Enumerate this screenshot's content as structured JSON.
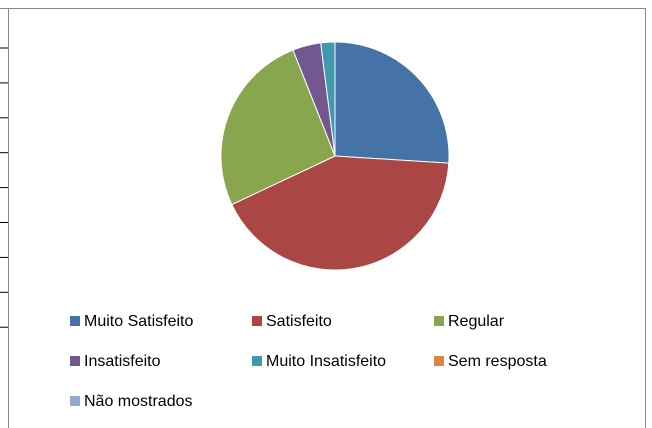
{
  "chart_data": {
    "type": "pie",
    "categories": [
      "Muito Satisfeito",
      "Satisfeito",
      "Regular",
      "Insatisfeito",
      "Muito Insatisfeito",
      "Sem resposta",
      "Não mostrados"
    ],
    "values": [
      26,
      42,
      26,
      4,
      2,
      0,
      0
    ],
    "colors": [
      "#4572A7",
      "#AA4643",
      "#89A54E",
      "#71588F",
      "#4198AF",
      "#DB843D",
      "#93A9CF"
    ],
    "legend": "bottom"
  }
}
